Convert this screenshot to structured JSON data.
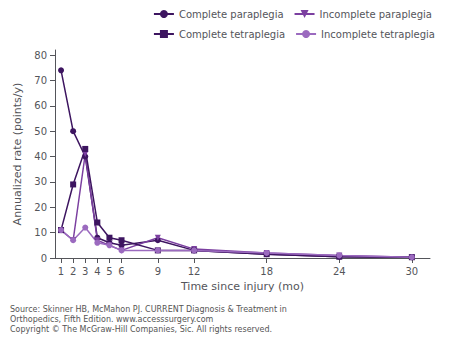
{
  "chart_data": {
    "type": "line",
    "xlabel": "Time since injury (mo)",
    "ylabel": "Annualized rate (points/y)",
    "x": [
      1,
      2,
      3,
      4,
      5,
      6,
      9,
      12,
      18,
      24,
      30
    ],
    "series": [
      {
        "name": "Complete paraplegia",
        "color": "#3d1560",
        "marker": "circle",
        "values": [
          74,
          50,
          40,
          8,
          6,
          5,
          7,
          3,
          1.5,
          0.5,
          0.3
        ]
      },
      {
        "name": "Incomplete paraplegia",
        "color": "#7b3fa0",
        "marker": "triangle-down",
        "values": [
          11,
          7,
          41,
          7,
          5,
          3,
          8,
          3.5,
          2,
          1,
          0.3
        ]
      },
      {
        "name": "Complete tetraplegia",
        "color": "#3d1560",
        "marker": "square",
        "values": [
          11,
          29,
          43,
          14,
          8,
          7,
          3,
          3,
          1.5,
          0.5,
          0.3
        ]
      },
      {
        "name": "Incomplete tetraplegia",
        "color": "#9b6abf",
        "marker": "circle",
        "values": [
          11,
          7,
          12,
          6,
          5,
          3,
          3,
          3,
          2,
          1,
          0.3
        ]
      }
    ],
    "xlim": [
      0.5,
      31.5
    ],
    "xticks": [
      1,
      2,
      3,
      4,
      5,
      6,
      9,
      12,
      18,
      24,
      30
    ],
    "ylim": [
      0,
      82
    ],
    "yticks": [
      0,
      10,
      20,
      30,
      40,
      50,
      60,
      70,
      80
    ],
    "grid": false,
    "legend": "upper right",
    "annotation": "Source: Skinner HB, McMahon PJ. CURRENT Diagnosis & Treatment in\nOrthopedics, Fifth Edition. www.accesssurgery.com\nCopyright © The McGraw-Hill Companies, Sic. All rights reserved."
  }
}
